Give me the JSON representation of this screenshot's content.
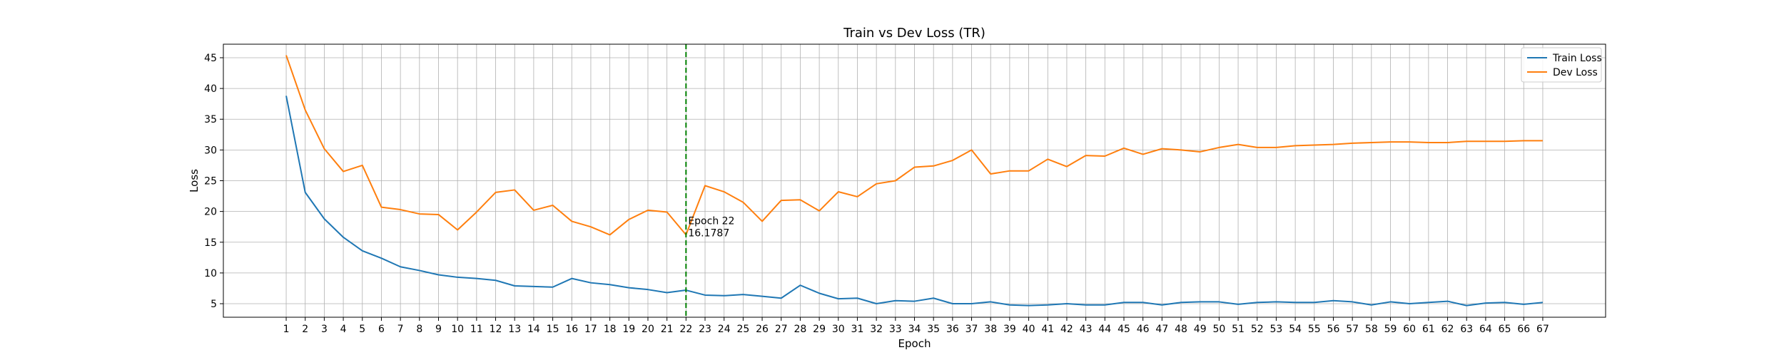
{
  "chart_data": {
    "type": "line",
    "title": "Train vs Dev Loss (TR)",
    "xlabel": "Epoch",
    "ylabel": "Loss",
    "x": [
      1,
      2,
      3,
      4,
      5,
      6,
      7,
      8,
      9,
      10,
      11,
      12,
      13,
      14,
      15,
      16,
      17,
      18,
      19,
      20,
      21,
      22,
      23,
      24,
      25,
      26,
      27,
      28,
      29,
      30,
      31,
      32,
      33,
      34,
      35,
      36,
      37,
      38,
      39,
      40,
      41,
      42,
      43,
      44,
      45,
      46,
      47,
      48,
      49,
      50,
      51,
      52,
      53,
      54,
      55,
      56,
      57,
      58,
      59,
      60,
      61,
      62,
      63,
      64,
      65,
      66,
      67
    ],
    "xlim": [
      -2.3,
      70.3
    ],
    "ylim": [
      2.8,
      47.2
    ],
    "yticks": [
      5,
      10,
      15,
      20,
      25,
      30,
      35,
      40,
      45
    ],
    "grid": true,
    "legend_position": "upper right",
    "series": [
      {
        "name": "Train Loss",
        "color": "#1f77b4",
        "values": [
          38.8,
          23.1,
          18.8,
          15.8,
          13.6,
          12.4,
          11.0,
          10.4,
          9.7,
          9.3,
          9.1,
          8.8,
          7.9,
          7.8,
          7.7,
          9.1,
          8.4,
          8.1,
          7.6,
          7.3,
          6.8,
          7.2,
          6.4,
          6.3,
          6.5,
          6.2,
          5.9,
          8.0,
          6.7,
          5.8,
          5.9,
          5.0,
          5.5,
          5.4,
          5.9,
          5.0,
          5.0,
          5.3,
          4.8,
          4.7,
          4.8,
          5.0,
          4.8,
          4.8,
          5.2,
          5.2,
          4.8,
          5.2,
          5.3,
          5.3,
          4.9,
          5.2,
          5.3,
          5.2,
          5.2,
          5.5,
          5.3,
          4.8,
          5.3,
          5.0,
          5.2,
          5.4,
          4.7,
          5.1,
          5.2,
          4.9,
          5.2
        ]
      },
      {
        "name": "Dev Loss",
        "color": "#ff7f0e",
        "values": [
          45.4,
          36.5,
          30.2,
          26.5,
          27.5,
          20.7,
          20.3,
          19.6,
          19.5,
          17.0,
          19.9,
          23.1,
          23.5,
          20.2,
          21.0,
          18.4,
          17.5,
          16.2,
          18.7,
          20.2,
          19.9,
          16.2,
          24.2,
          23.2,
          21.5,
          18.4,
          21.8,
          21.9,
          20.1,
          23.2,
          22.4,
          24.5,
          25.0,
          27.2,
          27.4,
          28.3,
          30.0,
          26.1,
          26.6,
          26.6,
          28.5,
          27.3,
          29.1,
          29.0,
          30.3,
          29.3,
          30.2,
          30.0,
          29.7,
          30.4,
          30.9,
          30.4,
          30.4,
          30.7,
          30.8,
          30.9,
          31.1,
          31.2,
          31.3,
          31.3,
          31.2,
          31.2,
          31.4,
          31.4,
          31.4,
          31.5,
          31.5
        ]
      }
    ],
    "annotation": {
      "x": 22,
      "y": 16.1787,
      "line_color": "#008000",
      "line_1": "Epoch 22",
      "line_2": "16.1787"
    }
  }
}
